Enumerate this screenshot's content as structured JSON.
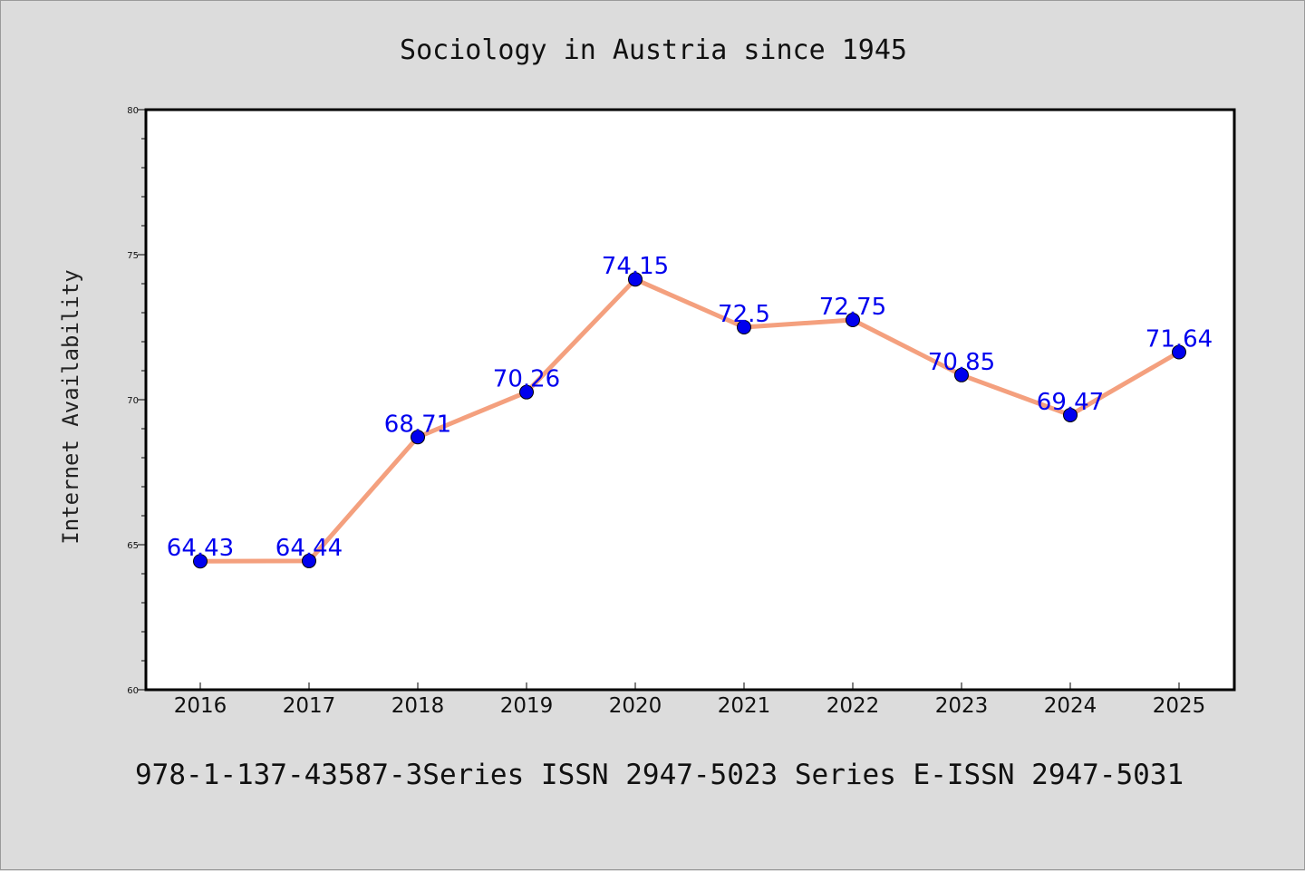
{
  "chart_data": {
    "type": "line",
    "title": "Sociology in Austria since 1945",
    "xlabel": "",
    "ylabel": "Internet Availability",
    "footer": "978-1-137-43587-3Series ISSN 2947-5023 Series E-ISSN 2947-5031",
    "x": [
      "2016",
      "2017",
      "2018",
      "2019",
      "2020",
      "2021",
      "2022",
      "2023",
      "2024",
      "2025"
    ],
    "series": [
      {
        "values": [
          64.43,
          64.44,
          68.71,
          70.26,
          74.15,
          72.5,
          72.75,
          70.85,
          69.47,
          71.64
        ],
        "labels": [
          "64.43",
          "64.44",
          "68.71",
          "70.26",
          "74.15",
          "72.5",
          "72.75",
          "70.85",
          "69.47",
          "71.64"
        ],
        "line_color": "#f4a07e",
        "marker_color": "#0000ee",
        "label_color": "#0000ee"
      }
    ],
    "ylim": [
      60,
      80
    ],
    "yticks": [
      "60",
      "65",
      "70",
      "75",
      "80"
    ],
    "grid": false,
    "legend": "none"
  },
  "colors": {
    "background": "#dcdcdc",
    "plot_background": "#ffffff",
    "axis": "#000000"
  }
}
